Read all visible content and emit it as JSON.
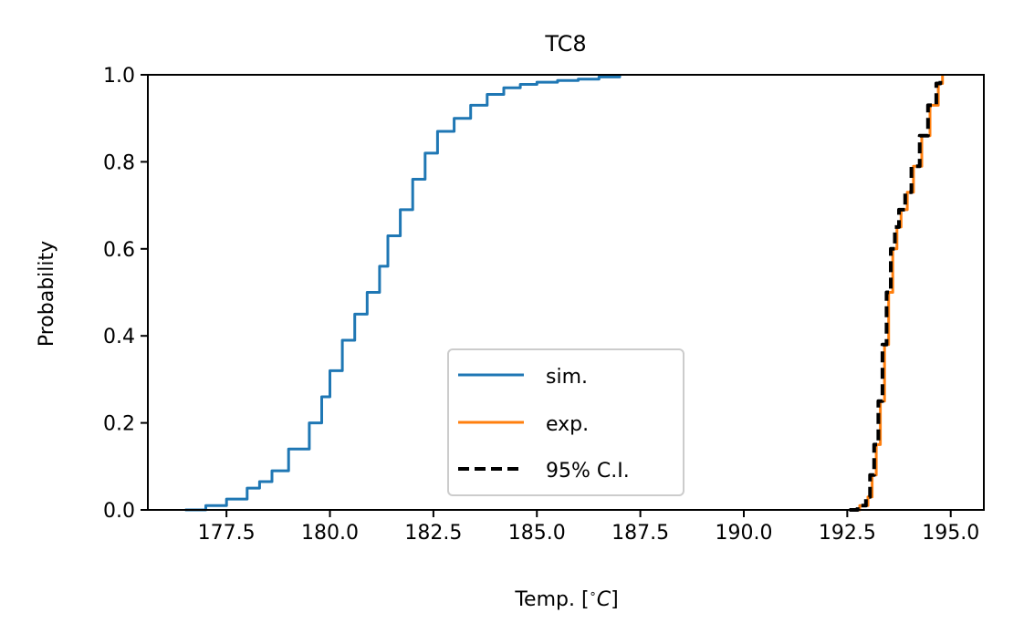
{
  "chart_data": {
    "type": "line",
    "title": "TC8",
    "xlabel": "Temp. [$^{\\circ}C$]",
    "ylabel": "Probability",
    "xlim": [
      175.6,
      195.8
    ],
    "ylim": [
      0.0,
      1.0
    ],
    "xticks": [
      177.5,
      180.0,
      182.5,
      185.0,
      187.5,
      190.0,
      192.5,
      195.0
    ],
    "xtick_labels": [
      "177.5",
      "180.0",
      "182.5",
      "185.0",
      "187.5",
      "190.0",
      "192.5",
      "195.0"
    ],
    "yticks": [
      0.0,
      0.2,
      0.4,
      0.6,
      0.8,
      1.0
    ],
    "ytick_labels": [
      "0.0",
      "0.2",
      "0.4",
      "0.6",
      "0.8",
      "1.0"
    ],
    "grid": false,
    "legend_position": "lower-center",
    "series": [
      {
        "name": "sim.",
        "color": "#1f77b4",
        "style": "solid",
        "x": [
          176.5,
          177.0,
          177.5,
          178.0,
          178.3,
          178.6,
          179.0,
          179.5,
          179.8,
          180.0,
          180.3,
          180.6,
          180.9,
          181.2,
          181.4,
          181.7,
          182.0,
          182.3,
          182.6,
          183.0,
          183.4,
          183.8,
          184.2,
          184.6,
          185.0,
          185.5,
          186.0,
          186.5,
          187.0
        ],
        "y": [
          0.0,
          0.01,
          0.025,
          0.05,
          0.065,
          0.09,
          0.14,
          0.2,
          0.26,
          0.32,
          0.39,
          0.45,
          0.5,
          0.56,
          0.63,
          0.69,
          0.76,
          0.82,
          0.87,
          0.9,
          0.93,
          0.955,
          0.97,
          0.978,
          0.983,
          0.987,
          0.99,
          0.995,
          1.0
        ]
      },
      {
        "name": "exp.",
        "color": "#ff7f0e",
        "style": "solid",
        "x": [
          192.6,
          192.8,
          193.0,
          193.1,
          193.2,
          193.3,
          193.4,
          193.5,
          193.6,
          193.7,
          193.8,
          193.95,
          194.1,
          194.3,
          194.5,
          194.7,
          194.8
        ],
        "y": [
          0.0,
          0.01,
          0.03,
          0.08,
          0.15,
          0.25,
          0.38,
          0.5,
          0.6,
          0.65,
          0.69,
          0.73,
          0.79,
          0.86,
          0.93,
          0.98,
          1.0
        ]
      },
      {
        "name": "95% C.I.",
        "color": "#000000",
        "style": "dashed",
        "x": [
          192.55,
          192.75,
          192.95,
          193.05,
          193.15,
          193.25,
          193.35,
          193.45,
          193.55,
          193.65,
          193.75,
          193.9,
          194.05,
          194.25,
          194.45,
          194.65,
          194.75
        ],
        "y": [
          0.0,
          0.01,
          0.03,
          0.08,
          0.15,
          0.25,
          0.38,
          0.5,
          0.6,
          0.65,
          0.69,
          0.73,
          0.79,
          0.86,
          0.93,
          0.98,
          1.0
        ]
      }
    ]
  }
}
